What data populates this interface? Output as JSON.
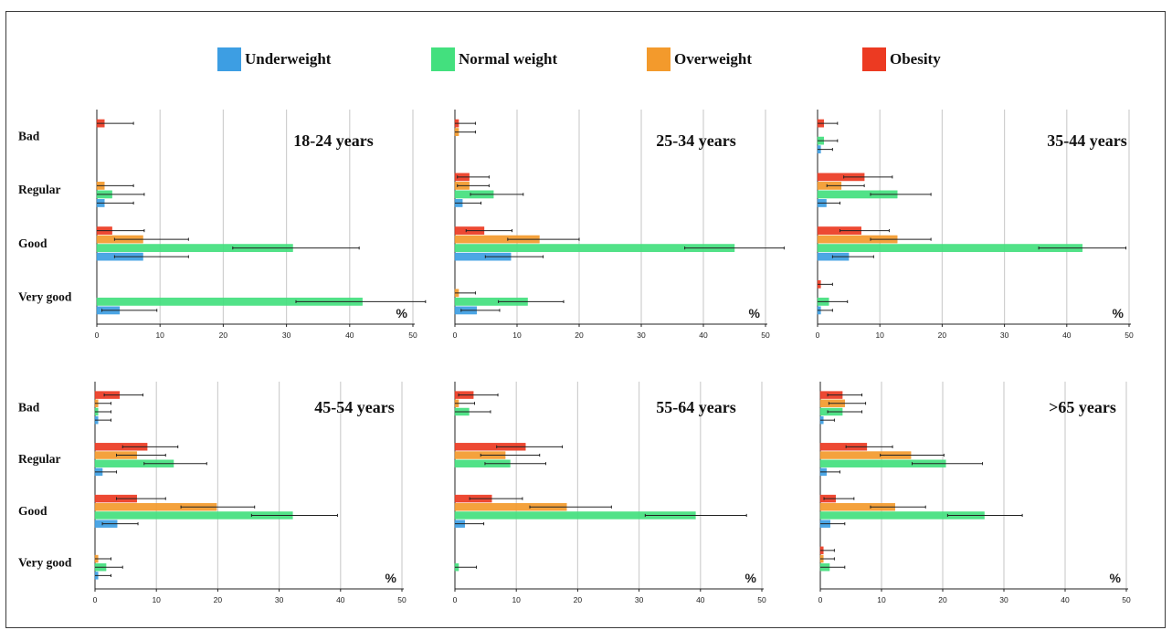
{
  "legend": [
    {
      "name": "Underweight",
      "color": "#3d9ee3"
    },
    {
      "name": "Normal weight",
      "color": "#43e07e"
    },
    {
      "name": "Overweight",
      "color": "#f39a2c"
    },
    {
      "name": "Obesity",
      "color": "#ec3a22"
    }
  ],
  "categories": [
    "Bad",
    "Regular",
    "Good",
    "Very good"
  ],
  "series_order": [
    "Obesity",
    "Overweight",
    "Normal weight",
    "Underweight"
  ],
  "unit": "%",
  "chart_data": [
    {
      "type": "bar",
      "orientation": "horizontal",
      "title": "18-24 years",
      "xlim": [
        0,
        50
      ],
      "xticks": [
        0,
        10,
        20,
        30,
        40,
        50
      ],
      "grid": true,
      "legend_position": "top",
      "categories": [
        "Bad",
        "Regular",
        "Good",
        "Very good"
      ],
      "series": [
        {
          "name": "Obesity",
          "values": [
            1.2,
            0,
            2.4,
            0
          ],
          "errors": [
            [
              0,
              5.8
            ],
            null,
            [
              0,
              7.5
            ],
            null
          ]
        },
        {
          "name": "Overweight",
          "values": [
            0,
            1.2,
            7.3,
            0
          ],
          "errors": [
            null,
            [
              0,
              5.8
            ],
            [
              2.8,
              14.5
            ],
            null
          ]
        },
        {
          "name": "Normal weight",
          "values": [
            0,
            2.4,
            31,
            42
          ],
          "errors": [
            null,
            [
              0,
              7.5
            ],
            [
              21.5,
              41.5
            ],
            [
              31.5,
              52
            ]
          ]
        },
        {
          "name": "Underweight",
          "values": [
            0,
            1.2,
            7.3,
            3.6
          ],
          "errors": [
            null,
            [
              0,
              5.8
            ],
            [
              2.8,
              14.5
            ],
            [
              0.8,
              9.5
            ]
          ]
        }
      ]
    },
    {
      "type": "bar",
      "orientation": "horizontal",
      "title": "25-34 years",
      "xlim": [
        0,
        50
      ],
      "xticks": [
        0,
        10,
        20,
        30,
        40,
        50
      ],
      "grid": true,
      "legend_position": "top",
      "categories": [
        "Bad",
        "Regular",
        "Good",
        "Very good"
      ],
      "series": [
        {
          "name": "Obesity",
          "values": [
            0.6,
            2.3,
            4.7,
            0
          ],
          "errors": [
            [
              0,
              3.3
            ],
            [
              0.4,
              5.5
            ],
            [
              1.8,
              9.2
            ],
            null
          ]
        },
        {
          "name": "Overweight",
          "values": [
            0.6,
            2.3,
            13.6,
            0.6
          ],
          "errors": [
            [
              0,
              3.3
            ],
            [
              0.4,
              5.5
            ],
            [
              8.5,
              20
            ],
            [
              0,
              3.3
            ]
          ]
        },
        {
          "name": "Normal weight",
          "values": [
            0,
            6.2,
            45,
            11.7
          ],
          "errors": [
            null,
            [
              2.5,
              11
            ],
            [
              37,
              53
            ],
            [
              7,
              17.5
            ]
          ]
        },
        {
          "name": "Underweight",
          "values": [
            0,
            1.2,
            9,
            3.5
          ],
          "errors": [
            null,
            [
              0,
              4.2
            ],
            [
              4.9,
              14.2
            ],
            [
              1,
              7.2
            ]
          ]
        }
      ]
    },
    {
      "type": "bar",
      "orientation": "horizontal",
      "title": "35-44 years",
      "xlim": [
        0,
        50
      ],
      "xticks": [
        0,
        10,
        20,
        30,
        40,
        50
      ],
      "grid": true,
      "legend_position": "top",
      "categories": [
        "Bad",
        "Regular",
        "Good",
        "Very good"
      ],
      "series": [
        {
          "name": "Obesity",
          "values": [
            1,
            7.5,
            7,
            0.5
          ],
          "errors": [
            [
              0,
              3.2
            ],
            [
              4.2,
              12
            ],
            [
              3.6,
              11.5
            ],
            [
              0,
              2.4
            ]
          ]
        },
        {
          "name": "Overweight",
          "values": [
            0,
            3.8,
            12.8,
            0
          ],
          "errors": [
            null,
            [
              1.5,
              7.5
            ],
            [
              8.5,
              18.2
            ],
            null
          ]
        },
        {
          "name": "Normal weight",
          "values": [
            1,
            12.8,
            42.5,
            1.8
          ],
          "errors": [
            [
              0,
              3.2
            ],
            [
              8.5,
              18.2
            ],
            [
              35.5,
              49.5
            ],
            [
              0,
              4.8
            ]
          ]
        },
        {
          "name": "Underweight",
          "values": [
            0.5,
            1.4,
            5,
            0.5
          ],
          "errors": [
            [
              0,
              2.4
            ],
            [
              0,
              3.6
            ],
            [
              2.4,
              9
            ],
            [
              0,
              2.4
            ]
          ]
        }
      ]
    },
    {
      "type": "bar",
      "orientation": "horizontal",
      "title": "45-54 years",
      "xlim": [
        0,
        50
      ],
      "xticks": [
        0,
        10,
        20,
        30,
        40,
        50
      ],
      "grid": true,
      "legend_position": "top",
      "categories": [
        "Bad",
        "Regular",
        "Good",
        "Very good"
      ],
      "series": [
        {
          "name": "Obesity",
          "values": [
            4,
            8.5,
            6.8,
            0
          ],
          "errors": [
            [
              1.5,
              7.8
            ],
            [
              4.5,
              13.5
            ],
            [
              3.5,
              11.5
            ],
            null
          ]
        },
        {
          "name": "Overweight",
          "values": [
            0.5,
            6.8,
            19.8,
            0.5
          ],
          "errors": [
            [
              0,
              2.6
            ],
            [
              3.5,
              11.5
            ],
            [
              14,
              26
            ],
            [
              0,
              2.6
            ]
          ]
        },
        {
          "name": "Normal weight",
          "values": [
            0.5,
            12.8,
            32.2,
            1.8
          ],
          "errors": [
            [
              0,
              2.6
            ],
            [
              8,
              18.2
            ],
            [
              25.5,
              39.5
            ],
            [
              0,
              4.5
            ]
          ]
        },
        {
          "name": "Underweight",
          "values": [
            0.5,
            1.2,
            3.6,
            0.5
          ],
          "errors": [
            [
              0,
              2.6
            ],
            [
              0,
              3.5
            ],
            [
              1.2,
              7
            ],
            [
              0,
              2.6
            ]
          ]
        }
      ]
    },
    {
      "type": "bar",
      "orientation": "horizontal",
      "title": "55-64 years",
      "xlim": [
        0,
        50
      ],
      "xticks": [
        0,
        10,
        20,
        30,
        40,
        50
      ],
      "grid": true,
      "legend_position": "top",
      "categories": [
        "Bad",
        "Regular",
        "Good",
        "Very good"
      ],
      "series": [
        {
          "name": "Obesity",
          "values": [
            3,
            11.5,
            6,
            0
          ],
          "errors": [
            [
              0.6,
              7
            ],
            [
              6.8,
              17.5
            ],
            [
              2.4,
              11
            ],
            null
          ]
        },
        {
          "name": "Overweight",
          "values": [
            0.6,
            8.2,
            18.2,
            0
          ],
          "errors": [
            [
              0,
              3.2
            ],
            [
              4.2,
              13.8
            ],
            [
              12.2,
              25.5
            ],
            null
          ]
        },
        {
          "name": "Normal weight",
          "values": [
            2.3,
            9,
            39.2,
            0.6
          ],
          "errors": [
            [
              0,
              5.8
            ],
            [
              4.9,
              14.8
            ],
            [
              31,
              47.5
            ],
            [
              0,
              3.5
            ]
          ]
        },
        {
          "name": "Underweight",
          "values": [
            0,
            0,
            1.6,
            0
          ],
          "errors": [
            null,
            null,
            [
              0,
              4.7
            ],
            null
          ]
        }
      ]
    },
    {
      "type": "bar",
      "orientation": "horizontal",
      "title": ">65 years",
      "xlim": [
        0,
        50
      ],
      "xticks": [
        0,
        10,
        20,
        30,
        40,
        50
      ],
      "grid": true,
      "legend_position": "top",
      "categories": [
        "Bad",
        "Regular",
        "Good",
        "Very good"
      ],
      "series": [
        {
          "name": "Obesity",
          "values": [
            3.6,
            7.6,
            2.5,
            0.5
          ],
          "errors": [
            [
              1.2,
              6.8
            ],
            [
              4.2,
              11.8
            ],
            [
              0.6,
              5.5
            ],
            [
              0,
              2.3
            ]
          ]
        },
        {
          "name": "Overweight",
          "values": [
            4,
            14.8,
            12.2,
            0.5
          ],
          "errors": [
            [
              1.4,
              7.4
            ],
            [
              9.8,
              20.2
            ],
            [
              8.2,
              17.2
            ],
            [
              0,
              2.3
            ]
          ]
        },
        {
          "name": "Normal weight",
          "values": [
            3.6,
            20.5,
            26.8,
            1.5
          ],
          "errors": [
            [
              1.2,
              6.8
            ],
            [
              15,
              26.5
            ],
            [
              20.8,
              33
            ],
            [
              0,
              4
            ]
          ]
        },
        {
          "name": "Underweight",
          "values": [
            0.5,
            1,
            1.6,
            0
          ],
          "errors": [
            [
              0,
              2.3
            ],
            [
              0,
              3.2
            ],
            [
              0,
              4
            ],
            null
          ]
        }
      ]
    }
  ]
}
